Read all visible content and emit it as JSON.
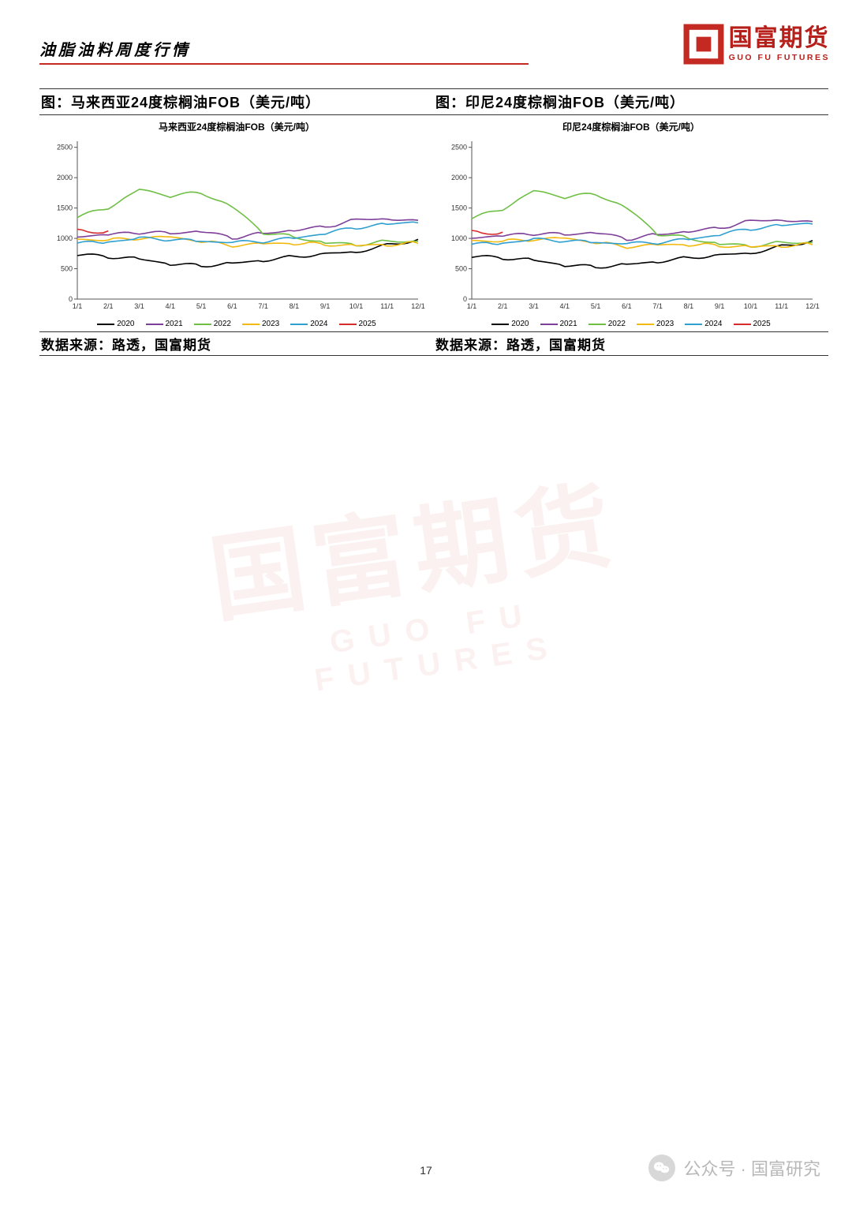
{
  "header": {
    "title": "油脂油料周度行情"
  },
  "logo": {
    "cn": "国富期货",
    "en": "GUO FU FUTURES",
    "mark_color": "#c52a22"
  },
  "page_number": "17",
  "footer": {
    "wechat_label": "公众号 · 国富研究"
  },
  "legend_years": [
    "2020",
    "2021",
    "2022",
    "2023",
    "2024",
    "2025"
  ],
  "series_colors": {
    "2020": "#000000",
    "2021": "#7e3f98",
    "2022": "#6fbf44",
    "2023": "#f2b90f",
    "2024": "#2f9fd0",
    "2025": "#d62b2b"
  },
  "x_labels": [
    "1/1",
    "2/1",
    "3/1",
    "4/1",
    "5/1",
    "6/1",
    "7/1",
    "8/1",
    "9/1",
    "10/1",
    "11/1",
    "12/1"
  ],
  "chart_left": {
    "title": "图：马来西亚24度棕榈油FOB（美元/吨）",
    "subtitle": "马来西亚24度棕榈油FOB（美元/吨）",
    "source": "数据来源：路透，国富期货",
    "type": "line",
    "ylim": [
      0,
      2600
    ],
    "yticks": [
      0,
      500,
      1000,
      1500,
      2000,
      2500
    ],
    "background_color": "#ffffff",
    "axis_color": "#555555",
    "tick_fontsize": 9,
    "series": {
      "2020": [
        730,
        700,
        660,
        580,
        550,
        590,
        640,
        700,
        750,
        780,
        890,
        980
      ],
      "2021": [
        1030,
        1060,
        1100,
        1080,
        1120,
        1010,
        1080,
        1140,
        1190,
        1310,
        1330,
        1280
      ],
      "2022": [
        1350,
        1500,
        1800,
        1700,
        1750,
        1520,
        1100,
        1020,
        930,
        900,
        950,
        960
      ],
      "2023": [
        980,
        970,
        1000,
        1020,
        950,
        880,
        910,
        920,
        900,
        880,
        900,
        920
      ],
      "2024": [
        920,
        940,
        1000,
        980,
        950,
        930,
        950,
        1000,
        1080,
        1180,
        1230,
        1280
      ],
      "2025": [
        1130,
        1100
      ]
    }
  },
  "chart_right": {
    "title": "图：印尼24度棕榈油FOB（美元/吨）",
    "subtitle": "印尼24度棕榈油FOB（美元/吨）",
    "source": "数据来源：路透，国富期货",
    "type": "line",
    "ylim": [
      0,
      2600
    ],
    "yticks": [
      0,
      500,
      1000,
      1500,
      2000,
      2500
    ],
    "background_color": "#ffffff",
    "axis_color": "#555555",
    "tick_fontsize": 9,
    "series": {
      "2020": [
        700,
        680,
        640,
        560,
        530,
        570,
        620,
        680,
        730,
        760,
        870,
        960
      ],
      "2021": [
        1010,
        1040,
        1080,
        1060,
        1100,
        990,
        1060,
        1120,
        1170,
        1290,
        1310,
        1260
      ],
      "2022": [
        1330,
        1480,
        1780,
        1680,
        1730,
        1500,
        1080,
        1000,
        910,
        880,
        930,
        940
      ],
      "2023": [
        960,
        950,
        980,
        1000,
        930,
        860,
        890,
        900,
        880,
        860,
        880,
        900
      ],
      "2024": [
        900,
        920,
        980,
        960,
        930,
        910,
        930,
        980,
        1060,
        1160,
        1210,
        1260
      ],
      "2025": [
        1110,
        1080
      ]
    }
  }
}
